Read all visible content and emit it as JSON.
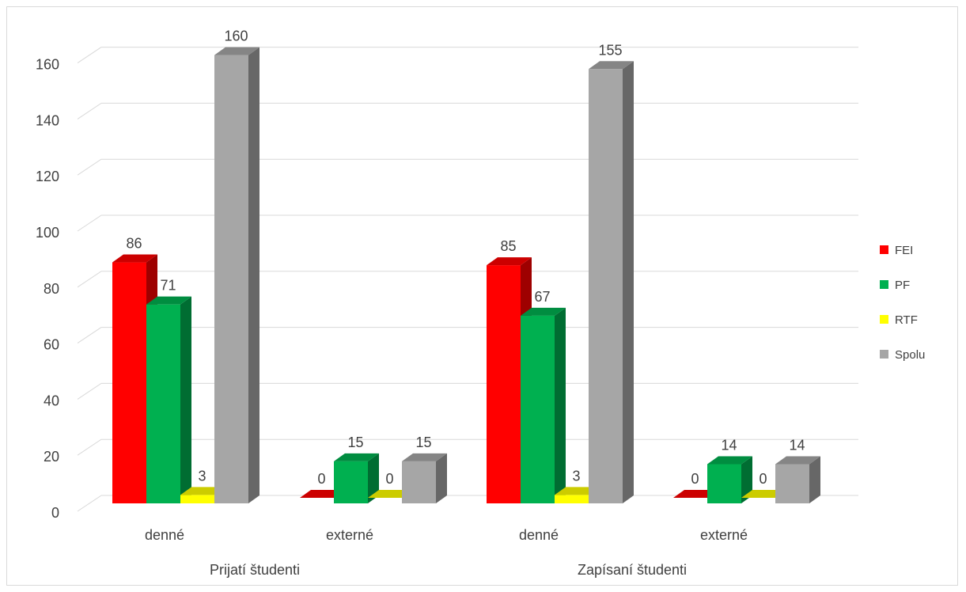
{
  "chart_data": {
    "type": "bar",
    "style": "3d-clustered-column",
    "groups": [
      {
        "label": "Prijatí študenti",
        "categories": [
          "denné",
          "externé"
        ]
      },
      {
        "label": "Zapísaní študenti",
        "categories": [
          "denné",
          "externé"
        ]
      }
    ],
    "categories": [
      "denné",
      "externé",
      "denné",
      "externé"
    ],
    "series": [
      {
        "name": "FEI",
        "color": "#ff0000",
        "values": [
          86,
          0,
          85,
          0
        ]
      },
      {
        "name": "PF",
        "color": "#00b050",
        "values": [
          71,
          15,
          67,
          14
        ]
      },
      {
        "name": "RTF",
        "color": "#ffff00",
        "values": [
          3,
          0,
          3,
          0
        ]
      },
      {
        "name": "Spolu",
        "color": "#a6a6a6",
        "values": [
          160,
          15,
          155,
          14
        ]
      }
    ],
    "ylim": [
      0,
      160
    ],
    "yticks": [
      "0",
      "20",
      "40",
      "60",
      "80",
      "100",
      "120",
      "140",
      "160"
    ],
    "title": "",
    "xlabel": "",
    "ylabel": "",
    "legend": "right",
    "grid": true
  }
}
